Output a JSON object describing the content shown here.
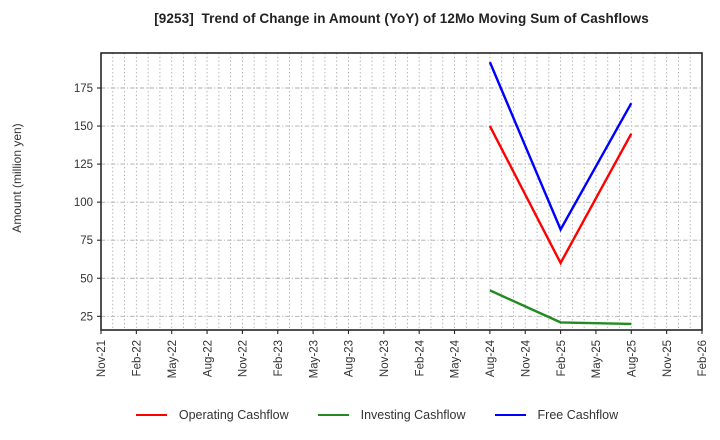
{
  "chart_data": {
    "type": "line",
    "title": "[9253]  Trend of Change in Amount (YoY) of 12Mo Moving Sum of Cashflows",
    "ylabel": "Amount (million yen)",
    "x_tick_labels": [
      "Nov-21",
      "Feb-22",
      "May-22",
      "Aug-22",
      "Nov-22",
      "Feb-23",
      "May-23",
      "Aug-23",
      "Nov-23",
      "Feb-24",
      "May-24",
      "Aug-24",
      "Nov-24",
      "Feb-25",
      "May-25",
      "Aug-25",
      "Nov-25",
      "Feb-26"
    ],
    "months_per_tick": 3,
    "y_tick_values": [
      25,
      50,
      75,
      100,
      125,
      150,
      175
    ],
    "ylim": [
      16,
      198
    ],
    "grid": {
      "vertical": "dotted-monthly",
      "horizontal": "dashed-major"
    },
    "legend_position": "bottom",
    "series": [
      {
        "name": "Operating Cashflow",
        "color": "#ff0000",
        "x": [
          "Aug-24",
          "Nov-24",
          "Feb-25",
          "May-25",
          "Aug-25"
        ],
        "values": [
          150,
          105,
          60,
          102.5,
          145
        ]
      },
      {
        "name": "Investing Cashflow",
        "color": "#228b22",
        "x": [
          "Aug-24",
          "Nov-24",
          "Feb-25",
          "May-25",
          "Aug-25"
        ],
        "values": [
          42,
          31.5,
          21,
          20.5,
          20
        ]
      },
      {
        "name": "Free Cashflow",
        "color": "#0000ff",
        "x": [
          "Aug-24",
          "Nov-24",
          "Feb-25",
          "May-25",
          "Aug-25"
        ],
        "values": [
          192,
          137,
          82,
          123.5,
          165
        ]
      }
    ],
    "colors": {
      "background": "#ffffff",
      "frame": "#262626",
      "grid": "#ababab",
      "text": "#333333"
    }
  }
}
